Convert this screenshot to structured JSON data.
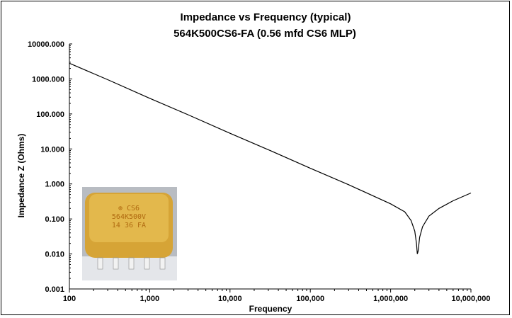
{
  "chart_data": {
    "type": "line",
    "title": "Impedance vs Frequency (typical)",
    "subtitle": "564K500CS6-FA  (0.56 mfd CS6 MLP)",
    "xlabel": "Frequency",
    "ylabel": "Impedance Z (Ohms)",
    "x_scale": "log",
    "y_scale": "log",
    "xlim": [
      100,
      10000000
    ],
    "ylim": [
      0.001,
      10000
    ],
    "x_ticks": [
      100,
      1000,
      10000,
      100000,
      1000000,
      10000000
    ],
    "x_tick_labels": [
      "100",
      "1,000",
      "10,000",
      "100,000",
      "1,000,000",
      "10,000,000"
    ],
    "y_ticks": [
      0.001,
      0.01,
      0.1,
      1,
      10,
      100,
      1000,
      10000
    ],
    "y_tick_labels": [
      "0.001",
      "0.010",
      "0.100",
      "1.000",
      "10.000",
      "100.000",
      "1000.000",
      "10000.000"
    ],
    "grid": false,
    "legend": "none",
    "line_color": "#000000",
    "series": [
      {
        "x": [
          100,
          300,
          1000,
          3000,
          10000,
          30000,
          100000,
          300000,
          1000000,
          1500000,
          1800000,
          2000000,
          2100000,
          2150000,
          2200000,
          2300000,
          2500000,
          3000000,
          4000000,
          6000000,
          10000000
        ],
        "y": [
          2800,
          950,
          280,
          95,
          28,
          9.5,
          2.8,
          0.95,
          0.27,
          0.16,
          0.09,
          0.045,
          0.02,
          0.01,
          0.012,
          0.03,
          0.06,
          0.12,
          0.2,
          0.33,
          0.55
        ]
      }
    ],
    "inset_photo": {
      "label_lines": [
        "⊕ CS6",
        "564K500V",
        "14 36 FA"
      ],
      "body_color": "#d6a436",
      "text_color": "#b06a10"
    }
  }
}
